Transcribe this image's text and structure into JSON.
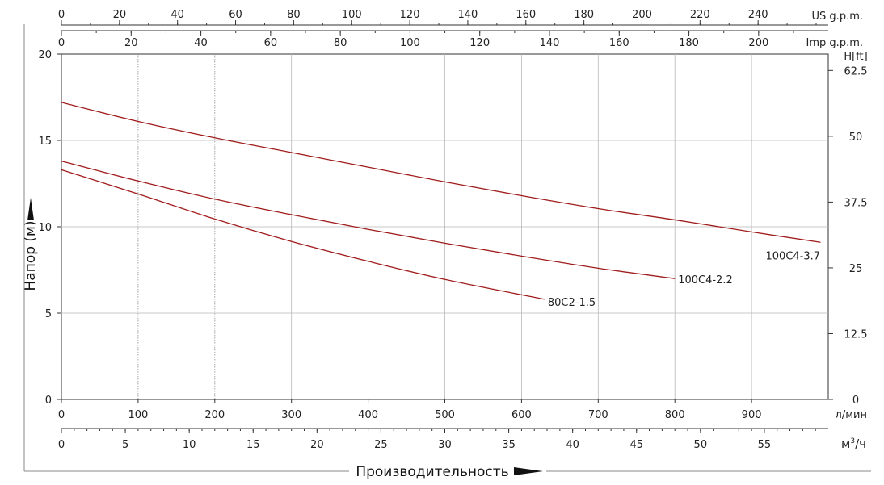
{
  "chart_data": {
    "type": "line",
    "title": "",
    "ylabel": "Напор (м)",
    "xlabel": "Производительность",
    "ylim": [
      0,
      20
    ],
    "xlim_lpm": [
      0,
      1000
    ],
    "grid": true,
    "y_ticks": [
      "0",
      "5",
      "10",
      "15",
      "20"
    ],
    "y_right": {
      "unit": "H[ft]",
      "ticks": [
        "0",
        "12.5",
        "25",
        "37.5",
        "50",
        "62.5"
      ],
      "values": [
        0,
        12.5,
        25,
        37.5,
        50,
        62.5
      ],
      "ft_per_m": 3.2808
    },
    "x_axes": {
      "lpm": {
        "unit": "л/мин",
        "ticks": [
          "0",
          "100",
          "200",
          "300",
          "400",
          "500",
          "600",
          "700",
          "800",
          "900"
        ],
        "values": [
          0,
          100,
          200,
          300,
          400,
          500,
          600,
          700,
          800,
          900
        ]
      },
      "m3h": {
        "unit_base": "м",
        "unit_sup": "3",
        "unit_tail": "/ч",
        "ticks": [
          "0",
          "5",
          "10",
          "15",
          "20",
          "25",
          "30",
          "35",
          "40",
          "45",
          "50",
          "55"
        ],
        "values": [
          0,
          5,
          10,
          15,
          20,
          25,
          30,
          35,
          40,
          45,
          50,
          55
        ],
        "lpm_per_unit": 16.6667
      },
      "us_gpm": {
        "unit": "US g.p.m.",
        "ticks": [
          "0",
          "20",
          "40",
          "60",
          "80",
          "100",
          "120",
          "140",
          "160",
          "180",
          "200",
          "220",
          "240"
        ],
        "values": [
          0,
          20,
          40,
          60,
          80,
          100,
          120,
          140,
          160,
          180,
          200,
          220,
          240
        ],
        "lpm_per_unit": 3.7854
      },
      "imp_gpm": {
        "unit": "Imp g.p.m.",
        "ticks": [
          "0",
          "20",
          "40",
          "60",
          "80",
          "100",
          "120",
          "140",
          "160",
          "180",
          "200"
        ],
        "values": [
          0,
          20,
          40,
          60,
          80,
          100,
          120,
          140,
          160,
          180,
          200
        ],
        "lpm_per_unit": 4.5461
      }
    },
    "series": [
      {
        "name": "100C4-3.7",
        "color": "#a01c1c",
        "x": [
          0,
          100,
          200,
          300,
          400,
          500,
          600,
          700,
          800,
          900,
          990
        ],
        "y": [
          17.2,
          16.1,
          15.15,
          14.3,
          13.45,
          12.6,
          11.8,
          11.05,
          10.4,
          9.7,
          9.1
        ]
      },
      {
        "name": "100C4-2.2",
        "color": "#a01c1c",
        "x": [
          0,
          100,
          200,
          300,
          400,
          500,
          600,
          700,
          800
        ],
        "y": [
          13.8,
          12.65,
          11.6,
          10.7,
          9.85,
          9.05,
          8.3,
          7.6,
          7.0
        ]
      },
      {
        "name": "80C2-1.5",
        "color": "#a01c1c",
        "x": [
          0,
          100,
          200,
          300,
          400,
          500,
          630
        ],
        "y": [
          13.3,
          11.9,
          10.45,
          9.15,
          8.0,
          6.95,
          5.8
        ]
      }
    ]
  }
}
